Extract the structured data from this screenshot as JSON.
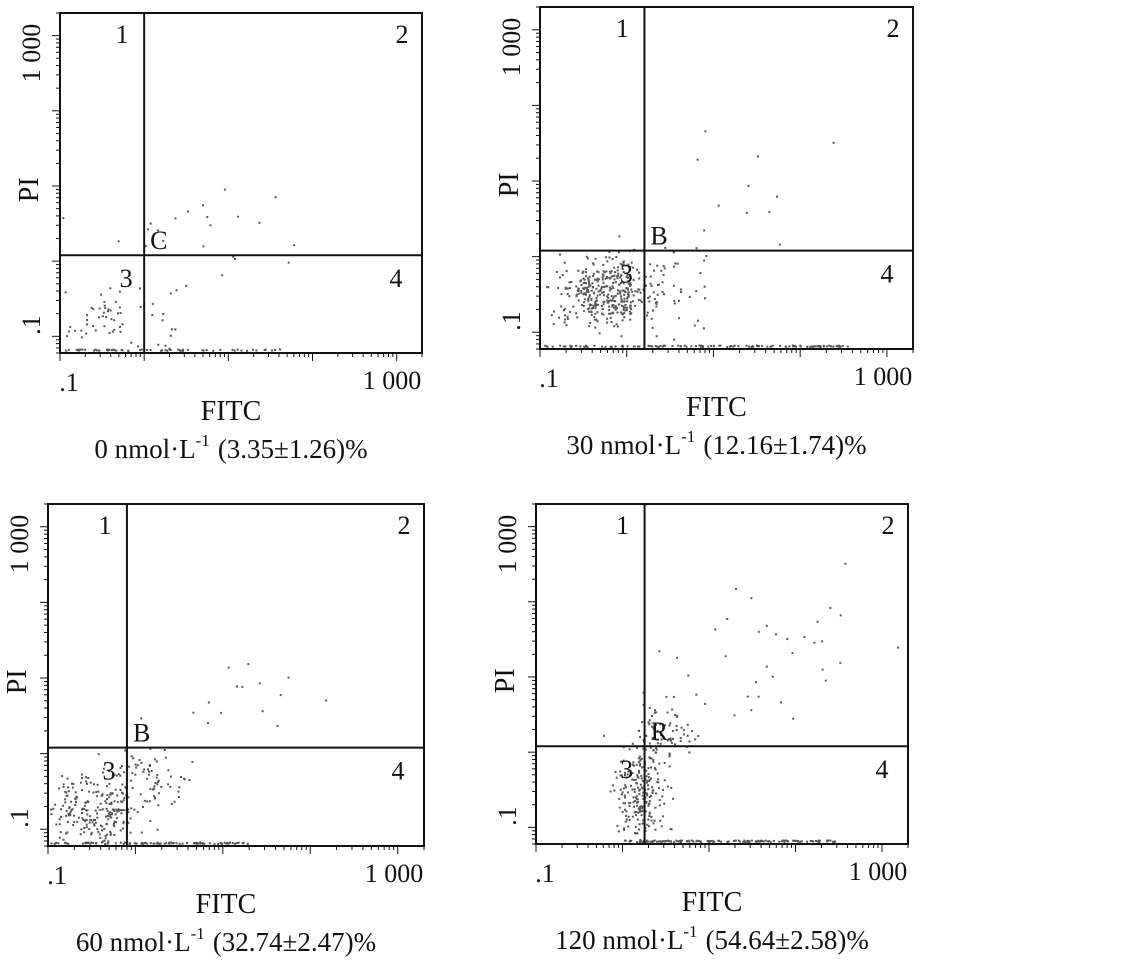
{
  "figure": {
    "ink_color": "#111111",
    "dot_color": "#555555"
  },
  "chart_data": [
    {
      "type": "scatter",
      "title": "",
      "xlabel": "FITC",
      "ylabel": "PI",
      "x_scale": "log",
      "y_scale": "log",
      "xlim": [
        0.1,
        2000
      ],
      "ylim": [
        0.06,
        2000
      ],
      "x_ticklabels": [
        ".1",
        "1 000"
      ],
      "y_ticklabels": [
        ".1",
        "1 000"
      ],
      "quadrant_labels": [
        "1",
        "2",
        "3",
        "4"
      ],
      "gate_x": 1.0,
      "gate_y": 1.2,
      "gate_label": "C",
      "caption": {
        "dose": "0 nmol·L",
        "exponent": "-1",
        "value": "(3.35±1.26)%"
      },
      "clusters": [
        {
          "cx": 0.4,
          "cy": 0.18,
          "sx": 0.9,
          "sy": 0.55,
          "n": 70
        },
        {
          "cx": 4.0,
          "cy": 3.0,
          "sx": 0.9,
          "sy": 0.6,
          "n": 22
        }
      ],
      "floor_band": {
        "xmin": 0.1,
        "xmax": 40,
        "n": 60
      }
    },
    {
      "type": "scatter",
      "title": "",
      "xlabel": "FITC",
      "ylabel": "PI",
      "x_scale": "log",
      "y_scale": "log",
      "xlim": [
        0.1,
        2000
      ],
      "ylim": [
        0.06,
        2000
      ],
      "x_ticklabels": [
        ".1",
        "1 000"
      ],
      "y_ticklabels": [
        ".1",
        "1 000"
      ],
      "quadrant_labels": [
        "1",
        "2",
        "3",
        "4"
      ],
      "gate_x": 1.6,
      "gate_y": 1.2,
      "gate_label": "B",
      "caption": {
        "dose": "30 nmol·L",
        "exponent": "-1",
        "value": "(12.16±1.74)%"
      },
      "clusters": [
        {
          "cx": 0.55,
          "cy": 0.35,
          "sx": 0.55,
          "sy": 0.45,
          "n": 380
        },
        {
          "cx": 3.0,
          "cy": 0.4,
          "sx": 0.6,
          "sy": 0.6,
          "n": 45
        },
        {
          "cx": 40,
          "cy": 8,
          "sx": 1.0,
          "sy": 0.7,
          "n": 10
        }
      ],
      "floor_band": {
        "xmin": 0.1,
        "xmax": 400,
        "n": 120
      }
    },
    {
      "type": "scatter",
      "title": "",
      "xlabel": "FITC",
      "ylabel": "PI",
      "x_scale": "log",
      "y_scale": "log",
      "xlim": [
        0.1,
        2000
      ],
      "ylim": [
        0.06,
        2000
      ],
      "x_ticklabels": [
        ".1",
        "1 000"
      ],
      "y_ticklabels": [
        ".1",
        "1 000"
      ],
      "quadrant_labels": [
        "1",
        "2",
        "3",
        "4"
      ],
      "gate_x": 0.8,
      "gate_y": 1.2,
      "gate_label": "B",
      "caption": {
        "dose": "60 nmol·L",
        "exponent": "-1",
        "value": "(32.74±2.47)%"
      },
      "clusters": [
        {
          "cx": 0.35,
          "cy": 0.18,
          "sx": 0.55,
          "sy": 0.5,
          "n": 240
        },
        {
          "cx": 1.5,
          "cy": 0.5,
          "sx": 0.45,
          "sy": 0.45,
          "n": 70
        },
        {
          "cx": 20,
          "cy": 5,
          "sx": 1.0,
          "sy": 0.5,
          "n": 14
        }
      ],
      "floor_band": {
        "xmin": 0.1,
        "xmax": 20,
        "n": 90
      }
    },
    {
      "type": "scatter",
      "title": "",
      "xlabel": "FITC",
      "ylabel": "PI",
      "x_scale": "log",
      "y_scale": "log",
      "xlim": [
        0.1,
        2000
      ],
      "ylim": [
        0.06,
        2000
      ],
      "x_ticklabels": [
        ".1",
        "1 000"
      ],
      "y_ticklabels": [
        ".1",
        "1 000"
      ],
      "quadrant_labels": [
        "1",
        "2",
        "3",
        "4"
      ],
      "gate_x": 1.8,
      "gate_y": 1.2,
      "gate_label": "R",
      "caption": {
        "dose": "120 nmol·L",
        "exponent": "-1",
        "value": "(54.64±2.58)%"
      },
      "clusters": [
        {
          "cx": 1.6,
          "cy": 0.3,
          "sx": 0.3,
          "sy": 0.7,
          "n": 220
        },
        {
          "cx": 3.0,
          "cy": 2.0,
          "sx": 0.4,
          "sy": 0.45,
          "n": 80
        },
        {
          "cx": 60,
          "cy": 25,
          "sx": 1.4,
          "sy": 1.2,
          "n": 35
        }
      ],
      "floor_band": {
        "xmin": 1.0,
        "xmax": 300,
        "n": 130
      }
    }
  ]
}
